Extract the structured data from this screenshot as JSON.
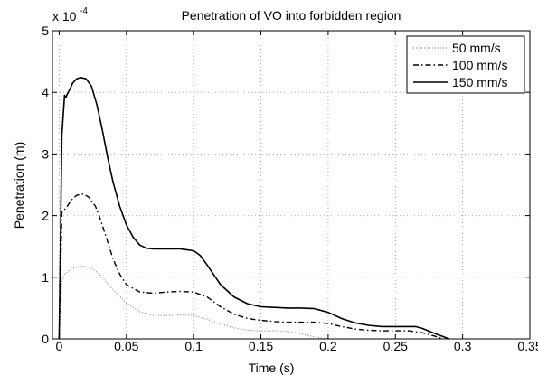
{
  "chart_data": {
    "type": "line",
    "title": "Penetration of VO into forbidden region",
    "xlabel": "Time (s)",
    "ylabel": "Penetration (m)",
    "y_exponent_label": "x 10",
    "y_exponent_power": "-4",
    "xlim": [
      -0.005,
      0.35
    ],
    "ylim": [
      0,
      5
    ],
    "x_ticks": [
      0,
      0.05,
      0.1,
      0.15,
      0.2,
      0.25,
      0.3,
      0.35
    ],
    "x_tick_labels": [
      "0",
      "0.05",
      "0.1",
      "0.15",
      "0.2",
      "0.25",
      "0.3",
      "0.35"
    ],
    "y_ticks": [
      0,
      1,
      2,
      3,
      4,
      5
    ],
    "y_tick_labels": [
      "0",
      "1",
      "2",
      "3",
      "4",
      "5"
    ],
    "y_units_note": "values in units of 1e-4 m",
    "grid": true,
    "legend_position": "top-right",
    "series": [
      {
        "name": "50 mm/s",
        "style": "dotted",
        "color": "#8c8c8c",
        "x": [
          0,
          0.002,
          0.004,
          0.008,
          0.012,
          0.018,
          0.024,
          0.03,
          0.04,
          0.05,
          0.06,
          0.07,
          0.08,
          0.09,
          0.1,
          0.11,
          0.12,
          0.13,
          0.14,
          0.15,
          0.16,
          0.17,
          0.18,
          0.19,
          0.2
        ],
        "y": [
          0,
          0.95,
          1.05,
          1.12,
          1.16,
          1.18,
          1.15,
          1.05,
          0.8,
          0.58,
          0.44,
          0.38,
          0.38,
          0.39,
          0.38,
          0.32,
          0.24,
          0.18,
          0.14,
          0.13,
          0.13,
          0.12,
          0.08,
          0.03,
          0
        ]
      },
      {
        "name": "100 mm/s",
        "style": "dashdot",
        "color": "#000000",
        "x": [
          0,
          0.002,
          0.004,
          0.006,
          0.009,
          0.013,
          0.018,
          0.022,
          0.027,
          0.03,
          0.035,
          0.04,
          0.045,
          0.05,
          0.06,
          0.07,
          0.08,
          0.09,
          0.1,
          0.11,
          0.12,
          0.13,
          0.14,
          0.15,
          0.16,
          0.17,
          0.18,
          0.19,
          0.2,
          0.21,
          0.22,
          0.23,
          0.24,
          0.25,
          0.26,
          0.27,
          0.28,
          0.285
        ],
        "y": [
          0,
          2.05,
          2.1,
          2.15,
          2.25,
          2.33,
          2.35,
          2.3,
          2.15,
          1.98,
          1.65,
          1.3,
          1.05,
          0.88,
          0.76,
          0.74,
          0.76,
          0.77,
          0.76,
          0.68,
          0.52,
          0.4,
          0.33,
          0.3,
          0.28,
          0.27,
          0.27,
          0.27,
          0.25,
          0.2,
          0.16,
          0.14,
          0.13,
          0.13,
          0.13,
          0.1,
          0.04,
          0
        ]
      },
      {
        "name": "150 mm/s",
        "style": "solid",
        "color": "#000000",
        "x": [
          0,
          0.002,
          0.004,
          0.005,
          0.006,
          0.008,
          0.01,
          0.013,
          0.016,
          0.02,
          0.024,
          0.028,
          0.032,
          0.036,
          0.04,
          0.045,
          0.05,
          0.055,
          0.06,
          0.065,
          0.07,
          0.08,
          0.09,
          0.1,
          0.105,
          0.11,
          0.12,
          0.13,
          0.14,
          0.15,
          0.16,
          0.17,
          0.18,
          0.19,
          0.2,
          0.21,
          0.22,
          0.23,
          0.24,
          0.25,
          0.26,
          0.265,
          0.27,
          0.28,
          0.29
        ],
        "y": [
          0,
          3.3,
          3.95,
          3.92,
          3.97,
          4.05,
          4.15,
          4.22,
          4.24,
          4.22,
          4.1,
          3.8,
          3.4,
          2.95,
          2.55,
          2.15,
          1.85,
          1.65,
          1.52,
          1.47,
          1.46,
          1.46,
          1.46,
          1.43,
          1.35,
          1.2,
          0.88,
          0.68,
          0.57,
          0.52,
          0.51,
          0.5,
          0.5,
          0.49,
          0.43,
          0.33,
          0.26,
          0.22,
          0.2,
          0.2,
          0.2,
          0.2,
          0.17,
          0.08,
          0
        ]
      }
    ]
  }
}
